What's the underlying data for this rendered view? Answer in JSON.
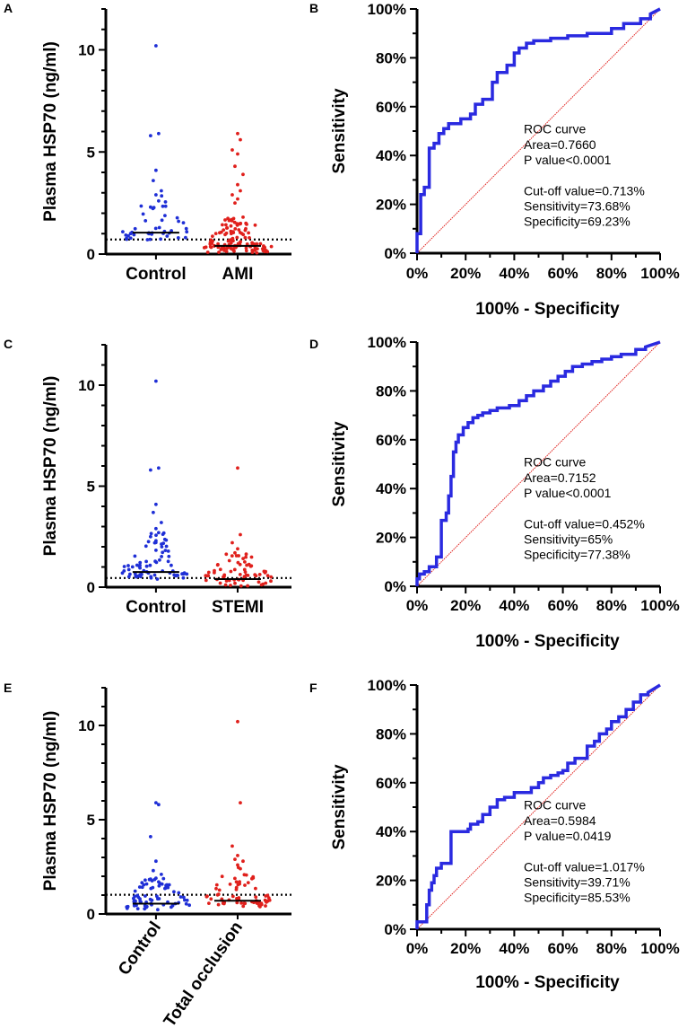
{
  "figure": {
    "panels": {
      "A": "A",
      "B": "B",
      "C": "C",
      "D": "D",
      "E": "E",
      "F": "F"
    }
  },
  "chart_data": [
    {
      "id": "A",
      "type": "scatter",
      "title": "",
      "ylabel": "Plasma HSP70 (ng/ml)",
      "ylim": [
        0,
        12
      ],
      "yticks": [
        "0",
        "5",
        "10"
      ],
      "categories": [
        "Control",
        "AMI"
      ],
      "series": [
        {
          "name": "Control",
          "color": "#1f2fd6",
          "median": 1.05,
          "n": 52,
          "top": [
            10.2,
            5.9,
            5.8,
            4.1,
            3.6,
            3.1,
            2.9,
            2.6,
            2.3
          ],
          "spread": 2.1
        },
        {
          "name": "AMI",
          "color": "#e0201c",
          "median": 0.4,
          "n": 130,
          "top": [
            5.9,
            5.6,
            5.1,
            4.9,
            4.3,
            3.9,
            3.4,
            3.1,
            2.9,
            2.7,
            2.5
          ],
          "spread": 1.6
        }
      ],
      "cutoff": 0.713
    },
    {
      "id": "B",
      "type": "line",
      "title": "",
      "xlabel": "100% - Specificity",
      "ylabel": "Sensitivity",
      "xlim": [
        0,
        100
      ],
      "ylim": [
        0,
        100
      ],
      "xticks": [
        "0%",
        "20%",
        "40%",
        "60%",
        "80%",
        "100%"
      ],
      "yticks": [
        "0%",
        "20%",
        "40%",
        "60%",
        "80%",
        "100%"
      ],
      "series": [
        {
          "name": "ROC",
          "color": "#2a2ae0",
          "x": [
            0,
            0,
            1.5,
            1.5,
            3,
            3,
            5,
            5,
            7,
            7,
            9,
            9,
            11,
            11,
            13,
            13,
            18,
            18,
            22,
            22,
            24,
            24,
            27,
            27,
            31,
            31,
            33,
            33,
            37,
            37,
            40,
            40,
            42,
            42,
            45,
            45,
            48,
            48,
            55,
            55,
            62,
            62,
            70,
            70,
            80,
            80,
            85,
            85,
            92,
            92,
            96,
            96,
            100
          ],
          "y": [
            0,
            8,
            8,
            24,
            24,
            27,
            27,
            43,
            43,
            45,
            45,
            49,
            49,
            51,
            51,
            53,
            53,
            55,
            55,
            57,
            57,
            61,
            61,
            63,
            63,
            70,
            70,
            74,
            74,
            77,
            77,
            82,
            82,
            84,
            84,
            86,
            86,
            87,
            87,
            88,
            88,
            89,
            89,
            90,
            90,
            92,
            92,
            94,
            94,
            96,
            96,
            98,
            100
          ]
        },
        {
          "name": "reference",
          "color": "#e0201c",
          "x": [
            0,
            100
          ],
          "y": [
            0,
            100
          ]
        }
      ],
      "annotations": [
        "ROC curve",
        "Area=0.7660",
        "P value<0.0001",
        "Cut-off value=0.713%",
        "Sensitivity=73.68%",
        "Specificity=69.23%"
      ]
    },
    {
      "id": "C",
      "type": "scatter",
      "title": "",
      "ylabel": "Plasma HSP70 (ng/ml)",
      "ylim": [
        0,
        12
      ],
      "yticks": [
        "0",
        "5",
        "10"
      ],
      "categories": [
        "Control",
        "STEMI"
      ],
      "series": [
        {
          "name": "Control",
          "color": "#1f2fd6",
          "median": 0.75,
          "n": 80,
          "top": [
            10.2,
            5.9,
            5.8,
            4.1,
            3.7,
            3.2,
            2.9,
            2.7,
            2.5,
            2.3
          ],
          "spread": 2.0
        },
        {
          "name": "STEMI",
          "color": "#e0201c",
          "median": 0.4,
          "n": 70,
          "top": [
            5.9,
            2.6,
            2.2,
            1.9,
            1.7
          ],
          "spread": 1.4
        }
      ],
      "cutoff": 0.452
    },
    {
      "id": "D",
      "type": "line",
      "title": "",
      "xlabel": "100% - Specificity",
      "ylabel": "Sensitivity",
      "xlim": [
        0,
        100
      ],
      "ylim": [
        0,
        100
      ],
      "xticks": [
        "0%",
        "20%",
        "40%",
        "60%",
        "80%",
        "100%"
      ],
      "yticks": [
        "0%",
        "20%",
        "40%",
        "60%",
        "80%",
        "100%"
      ],
      "series": [
        {
          "name": "ROC",
          "color": "#2a2ae0",
          "x": [
            0,
            0,
            1,
            1,
            3,
            3,
            5,
            5,
            8,
            8,
            10,
            10,
            12,
            12,
            13,
            13,
            14,
            14,
            15,
            15,
            16,
            16,
            17,
            17,
            19,
            19,
            21,
            21,
            23,
            23,
            25,
            25,
            27,
            27,
            30,
            30,
            33,
            33,
            38,
            38,
            42,
            42,
            45,
            45,
            48,
            48,
            52,
            52,
            55,
            55,
            58,
            58,
            61,
            61,
            64,
            64,
            68,
            68,
            72,
            72,
            76,
            76,
            80,
            80,
            84,
            84,
            90,
            90,
            94,
            94,
            100
          ],
          "y": [
            0,
            3,
            3,
            5,
            5,
            6,
            6,
            8,
            8,
            12,
            12,
            27,
            27,
            30,
            30,
            37,
            37,
            45,
            45,
            55,
            55,
            59,
            59,
            62,
            62,
            65,
            65,
            67,
            67,
            69,
            69,
            70,
            70,
            71,
            71,
            72,
            72,
            73,
            73,
            74,
            74,
            76,
            76,
            78,
            78,
            80,
            80,
            82,
            82,
            84,
            84,
            86,
            86,
            88,
            88,
            90,
            90,
            91,
            91,
            92,
            92,
            93,
            93,
            94,
            94,
            95,
            95,
            97,
            97,
            98,
            100
          ]
        },
        {
          "name": "reference",
          "color": "#e0201c",
          "x": [
            0,
            100
          ],
          "y": [
            0,
            100
          ]
        }
      ],
      "annotations": [
        "ROC curve",
        "Area=0.7152",
        "P value<0.0001",
        "Cut-off value=0.452%",
        "Sensitivity=65%",
        "Specificity=77.38%"
      ]
    },
    {
      "id": "E",
      "type": "scatter",
      "title": "",
      "ylabel": "Plasma HSP70 (ng/ml)",
      "ylim": [
        0,
        12
      ],
      "yticks": [
        "0",
        "5",
        "10"
      ],
      "categories": [
        "Control",
        "Total occlusion"
      ],
      "series": [
        {
          "name": "Control",
          "color": "#1f2fd6",
          "median": 0.55,
          "n": 75,
          "top": [
            5.9,
            5.8,
            4.1,
            2.8,
            2.3,
            2.1,
            1.9,
            1.7
          ],
          "spread": 1.5
        },
        {
          "name": "Total occlusion",
          "color": "#e0201c",
          "median": 0.7,
          "n": 70,
          "top": [
            10.2,
            5.9,
            3.6,
            3.1,
            2.9,
            2.8,
            2.6,
            2.4
          ],
          "spread": 1.9
        }
      ],
      "cutoff": 1.017
    },
    {
      "id": "F",
      "type": "line",
      "title": "",
      "xlabel": "100% - Specificity",
      "ylabel": "Sensitivity",
      "xlim": [
        0,
        100
      ],
      "ylim": [
        0,
        100
      ],
      "xticks": [
        "0%",
        "20%",
        "40%",
        "60%",
        "80%",
        "100%"
      ],
      "yticks": [
        "0%",
        "20%",
        "40%",
        "60%",
        "80%",
        "100%"
      ],
      "series": [
        {
          "name": "ROC",
          "color": "#2a2ae0",
          "x": [
            0,
            0,
            4,
            4,
            5,
            5,
            6,
            6,
            7,
            7,
            8,
            8,
            10,
            10,
            14,
            14,
            21,
            21,
            22,
            22,
            25,
            25,
            27,
            27,
            30,
            30,
            33,
            33,
            36,
            36,
            40,
            40,
            47,
            47,
            50,
            50,
            52,
            52,
            55,
            55,
            58,
            58,
            60,
            60,
            62,
            62,
            65,
            65,
            70,
            70,
            73,
            73,
            75,
            75,
            78,
            78,
            80,
            80,
            83,
            83,
            86,
            86,
            89,
            89,
            92,
            92,
            95,
            95,
            100
          ],
          "y": [
            0,
            3,
            3,
            10,
            10,
            16,
            16,
            19,
            19,
            22,
            22,
            25,
            25,
            27,
            27,
            40,
            40,
            41,
            41,
            43,
            43,
            44,
            44,
            47,
            47,
            50,
            50,
            53,
            53,
            54,
            54,
            56,
            56,
            58,
            58,
            60,
            60,
            62,
            62,
            63,
            63,
            64,
            64,
            65,
            65,
            68,
            68,
            70,
            70,
            75,
            75,
            77,
            77,
            80,
            80,
            82,
            82,
            85,
            85,
            87,
            87,
            90,
            90,
            93,
            93,
            96,
            96,
            97,
            100
          ]
        },
        {
          "name": "reference",
          "color": "#e0201c",
          "x": [
            0,
            100
          ],
          "y": [
            0,
            100
          ]
        }
      ],
      "annotations": [
        "ROC curve",
        "Area=0.5984",
        "P value=0.0419",
        "Cut-off value=1.017%",
        "Sensitivity=39.71%",
        "Specificity=85.53%"
      ]
    }
  ]
}
